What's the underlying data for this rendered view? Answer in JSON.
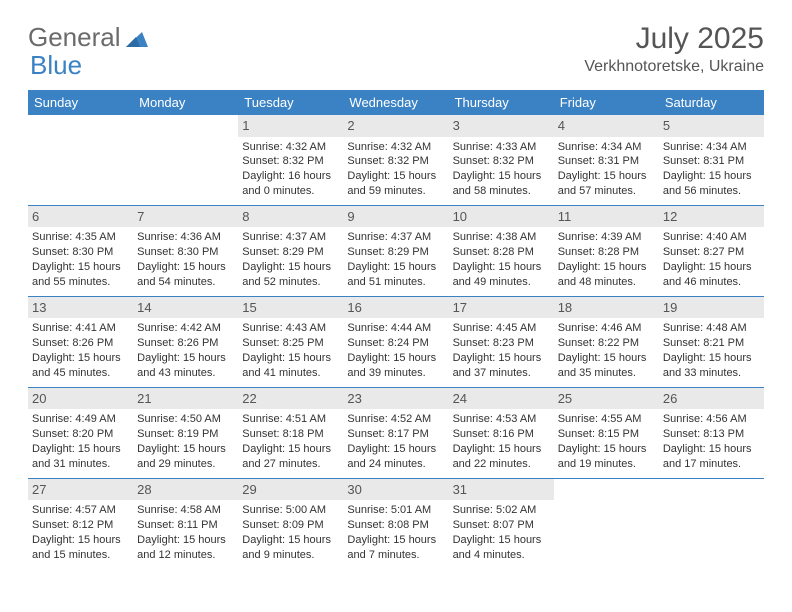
{
  "logo": {
    "part1": "General",
    "part2": "Blue"
  },
  "title": "July 2025",
  "location": "Verkhnotoretske, Ukraine",
  "dow": [
    "Sunday",
    "Monday",
    "Tuesday",
    "Wednesday",
    "Thursday",
    "Friday",
    "Saturday"
  ],
  "colors": {
    "accent": "#3b82c4",
    "dayBarBg": "#e9e9e9",
    "text": "#333333",
    "muted": "#555555"
  },
  "weeks": [
    [
      null,
      null,
      {
        "n": "1",
        "sr": "Sunrise: 4:32 AM",
        "ss": "Sunset: 8:32 PM",
        "dl": "Daylight: 16 hours and 0 minutes."
      },
      {
        "n": "2",
        "sr": "Sunrise: 4:32 AM",
        "ss": "Sunset: 8:32 PM",
        "dl": "Daylight: 15 hours and 59 minutes."
      },
      {
        "n": "3",
        "sr": "Sunrise: 4:33 AM",
        "ss": "Sunset: 8:32 PM",
        "dl": "Daylight: 15 hours and 58 minutes."
      },
      {
        "n": "4",
        "sr": "Sunrise: 4:34 AM",
        "ss": "Sunset: 8:31 PM",
        "dl": "Daylight: 15 hours and 57 minutes."
      },
      {
        "n": "5",
        "sr": "Sunrise: 4:34 AM",
        "ss": "Sunset: 8:31 PM",
        "dl": "Daylight: 15 hours and 56 minutes."
      }
    ],
    [
      {
        "n": "6",
        "sr": "Sunrise: 4:35 AM",
        "ss": "Sunset: 8:30 PM",
        "dl": "Daylight: 15 hours and 55 minutes."
      },
      {
        "n": "7",
        "sr": "Sunrise: 4:36 AM",
        "ss": "Sunset: 8:30 PM",
        "dl": "Daylight: 15 hours and 54 minutes."
      },
      {
        "n": "8",
        "sr": "Sunrise: 4:37 AM",
        "ss": "Sunset: 8:29 PM",
        "dl": "Daylight: 15 hours and 52 minutes."
      },
      {
        "n": "9",
        "sr": "Sunrise: 4:37 AM",
        "ss": "Sunset: 8:29 PM",
        "dl": "Daylight: 15 hours and 51 minutes."
      },
      {
        "n": "10",
        "sr": "Sunrise: 4:38 AM",
        "ss": "Sunset: 8:28 PM",
        "dl": "Daylight: 15 hours and 49 minutes."
      },
      {
        "n": "11",
        "sr": "Sunrise: 4:39 AM",
        "ss": "Sunset: 8:28 PM",
        "dl": "Daylight: 15 hours and 48 minutes."
      },
      {
        "n": "12",
        "sr": "Sunrise: 4:40 AM",
        "ss": "Sunset: 8:27 PM",
        "dl": "Daylight: 15 hours and 46 minutes."
      }
    ],
    [
      {
        "n": "13",
        "sr": "Sunrise: 4:41 AM",
        "ss": "Sunset: 8:26 PM",
        "dl": "Daylight: 15 hours and 45 minutes."
      },
      {
        "n": "14",
        "sr": "Sunrise: 4:42 AM",
        "ss": "Sunset: 8:26 PM",
        "dl": "Daylight: 15 hours and 43 minutes."
      },
      {
        "n": "15",
        "sr": "Sunrise: 4:43 AM",
        "ss": "Sunset: 8:25 PM",
        "dl": "Daylight: 15 hours and 41 minutes."
      },
      {
        "n": "16",
        "sr": "Sunrise: 4:44 AM",
        "ss": "Sunset: 8:24 PM",
        "dl": "Daylight: 15 hours and 39 minutes."
      },
      {
        "n": "17",
        "sr": "Sunrise: 4:45 AM",
        "ss": "Sunset: 8:23 PM",
        "dl": "Daylight: 15 hours and 37 minutes."
      },
      {
        "n": "18",
        "sr": "Sunrise: 4:46 AM",
        "ss": "Sunset: 8:22 PM",
        "dl": "Daylight: 15 hours and 35 minutes."
      },
      {
        "n": "19",
        "sr": "Sunrise: 4:48 AM",
        "ss": "Sunset: 8:21 PM",
        "dl": "Daylight: 15 hours and 33 minutes."
      }
    ],
    [
      {
        "n": "20",
        "sr": "Sunrise: 4:49 AM",
        "ss": "Sunset: 8:20 PM",
        "dl": "Daylight: 15 hours and 31 minutes."
      },
      {
        "n": "21",
        "sr": "Sunrise: 4:50 AM",
        "ss": "Sunset: 8:19 PM",
        "dl": "Daylight: 15 hours and 29 minutes."
      },
      {
        "n": "22",
        "sr": "Sunrise: 4:51 AM",
        "ss": "Sunset: 8:18 PM",
        "dl": "Daylight: 15 hours and 27 minutes."
      },
      {
        "n": "23",
        "sr": "Sunrise: 4:52 AM",
        "ss": "Sunset: 8:17 PM",
        "dl": "Daylight: 15 hours and 24 minutes."
      },
      {
        "n": "24",
        "sr": "Sunrise: 4:53 AM",
        "ss": "Sunset: 8:16 PM",
        "dl": "Daylight: 15 hours and 22 minutes."
      },
      {
        "n": "25",
        "sr": "Sunrise: 4:55 AM",
        "ss": "Sunset: 8:15 PM",
        "dl": "Daylight: 15 hours and 19 minutes."
      },
      {
        "n": "26",
        "sr": "Sunrise: 4:56 AM",
        "ss": "Sunset: 8:13 PM",
        "dl": "Daylight: 15 hours and 17 minutes."
      }
    ],
    [
      {
        "n": "27",
        "sr": "Sunrise: 4:57 AM",
        "ss": "Sunset: 8:12 PM",
        "dl": "Daylight: 15 hours and 15 minutes."
      },
      {
        "n": "28",
        "sr": "Sunrise: 4:58 AM",
        "ss": "Sunset: 8:11 PM",
        "dl": "Daylight: 15 hours and 12 minutes."
      },
      {
        "n": "29",
        "sr": "Sunrise: 5:00 AM",
        "ss": "Sunset: 8:09 PM",
        "dl": "Daylight: 15 hours and 9 minutes."
      },
      {
        "n": "30",
        "sr": "Sunrise: 5:01 AM",
        "ss": "Sunset: 8:08 PM",
        "dl": "Daylight: 15 hours and 7 minutes."
      },
      {
        "n": "31",
        "sr": "Sunrise: 5:02 AM",
        "ss": "Sunset: 8:07 PM",
        "dl": "Daylight: 15 hours and 4 minutes."
      },
      null,
      null
    ]
  ]
}
